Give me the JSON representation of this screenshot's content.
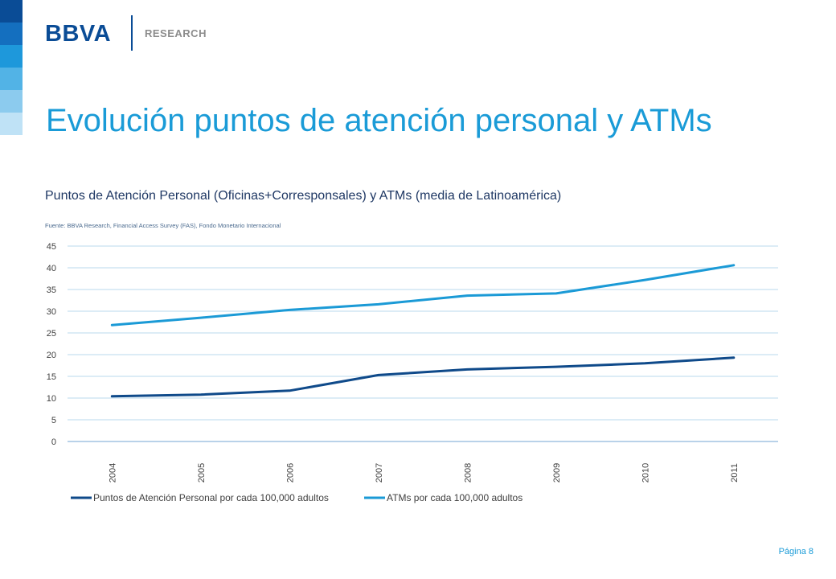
{
  "brand": {
    "logo_text": "BBVA",
    "sub_text": "RESEARCH"
  },
  "colors": {
    "stack": [
      "#0a4c96",
      "#146fbf",
      "#1e98db",
      "#52b3e6",
      "#8ccbee",
      "#bfe2f6"
    ],
    "series_dark": "#0f4a8a",
    "series_light": "#1b9ad6",
    "grid": "#b9d8ee",
    "axis": "#8fb8dc",
    "title": "#1a9bd7"
  },
  "title": "Evolución puntos de atención personal y ATMs",
  "page_number": "Página 8",
  "chart_data": {
    "type": "line",
    "title": "Puntos de Atención Personal (Oficinas+Corresponsales) y ATMs (media de Latinoamérica)",
    "source": "Fuente: BBVA Research, Financial Access Survey (FAS), Fondo Monetario Internacional",
    "categories": [
      "2004",
      "2005",
      "2006",
      "2007",
      "2008",
      "2009",
      "2010",
      "2011"
    ],
    "ylim": [
      0,
      45
    ],
    "yticks": [
      0,
      5,
      10,
      15,
      20,
      25,
      30,
      35,
      40,
      45
    ],
    "grid": true,
    "legend_position": "bottom",
    "series": [
      {
        "name": "Puntos de Atención Personal por cada 100,000 adultos",
        "color": "#0f4a8a",
        "values": [
          10.4,
          10.8,
          11.7,
          15.3,
          16.6,
          17.2,
          18.0,
          19.3
        ]
      },
      {
        "name": "ATMs por cada 100,000 adultos",
        "color": "#1b9ad6",
        "values": [
          26.8,
          28.5,
          30.3,
          31.6,
          33.6,
          34.1,
          37.2,
          40.6
        ]
      }
    ]
  }
}
